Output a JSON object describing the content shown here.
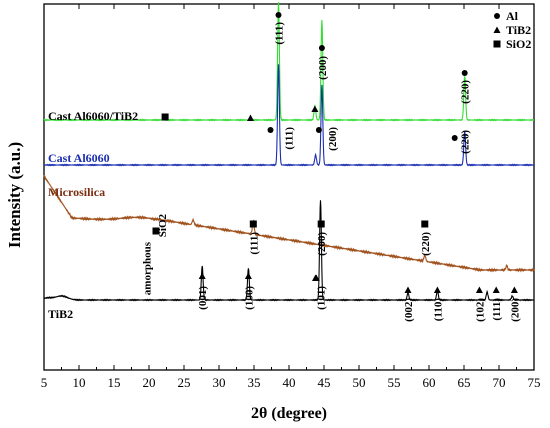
{
  "chart_data": {
    "type": "line",
    "xlabel": "2θ (degree)",
    "ylabel": "Intensity (a.u.)",
    "xlim": [
      5,
      75
    ],
    "x_ticks": [
      "5",
      "10",
      "15",
      "20",
      "25",
      "30",
      "35",
      "40",
      "45",
      "50",
      "55",
      "60",
      "65",
      "70",
      "75"
    ],
    "y_ticks": "none",
    "grid": false,
    "legend_position": "top-right",
    "legend": [
      {
        "symbol": "circle",
        "label": "Al"
      },
      {
        "symbol": "triangle",
        "label": "TiB2"
      },
      {
        "symbol": "square",
        "label": "SiO2"
      }
    ],
    "series": [
      {
        "name": "Cast Al6060/TiB2",
        "color": "#33dd33",
        "baseline_y": 120,
        "peaks": [
          [
            38.5,
            118
          ],
          [
            44.7,
            100
          ],
          [
            65.1,
            44
          ],
          [
            43.7,
            14
          ],
          [
            34.5,
            3
          ]
        ]
      },
      {
        "name": "Cast Al6060",
        "color": "#1a2db0",
        "baseline_y": 165,
        "peaks": [
          [
            38.5,
            101
          ],
          [
            44.7,
            80
          ],
          [
            65.1,
            34
          ],
          [
            43.8,
            10
          ]
        ]
      },
      {
        "name": "Microsilica",
        "color": "#a0521e",
        "hump_center": 21,
        "peaks": [
          [
            34.9,
            14
          ],
          [
            59.4,
            6
          ],
          [
            71.1,
            4
          ],
          [
            26.3,
            5
          ]
        ]
      },
      {
        "name": "TiB2",
        "color": "#000000",
        "baseline_y": 60,
        "peaks": [
          [
            27.6,
            34
          ],
          [
            34.2,
            32
          ],
          [
            44.5,
            100
          ],
          [
            57.0,
            7
          ],
          [
            61.2,
            9
          ],
          [
            68.3,
            8
          ],
          [
            71.9,
            4
          ]
        ]
      }
    ],
    "annotations": [
      {
        "text": "(111)",
        "x": 38.5,
        "series": "Cast Al6060/TiB2",
        "marker": "circle"
      },
      {
        "text": "(200)",
        "x": 44.7,
        "series": "Cast Al6060/TiB2",
        "marker": "circle"
      },
      {
        "text": "(220)",
        "x": 65.1,
        "series": "Cast Al6060/TiB2",
        "marker": "circle"
      },
      {
        "text": "(111)",
        "x": 38.5,
        "series": "Cast Al6060",
        "marker": "circle"
      },
      {
        "text": "(200)",
        "x": 44.7,
        "series": "Cast Al6060",
        "marker": "circle"
      },
      {
        "text": "(220)",
        "x": 65.1,
        "series": "Cast Al6060",
        "marker": "circle"
      },
      {
        "text": "(111)",
        "x": 34.9,
        "series": "Microsilica",
        "marker": "square"
      },
      {
        "text": "(200)",
        "x": 44.6,
        "series": "Microsilica",
        "marker": "square"
      },
      {
        "text": "(220)",
        "x": 59.4,
        "series": "Microsilica",
        "marker": "square"
      },
      {
        "text": "(001)",
        "x": 27.6,
        "series": "TiB2",
        "marker": "triangle"
      },
      {
        "text": "(100)",
        "x": 34.2,
        "series": "TiB2",
        "marker": "triangle"
      },
      {
        "text": "(101)",
        "x": 44.5,
        "series": "TiB2",
        "marker": "triangle"
      },
      {
        "text": "(002)",
        "x": 57.0,
        "series": "TiB2",
        "marker": "triangle"
      },
      {
        "text": "(110)",
        "x": 61.2,
        "series": "TiB2",
        "marker": "triangle"
      },
      {
        "text": "(102)",
        "x": 67.2,
        "series": "TiB2",
        "marker": "triangle"
      },
      {
        "text": "(111)",
        "x": 69.6,
        "series": "TiB2",
        "marker": "triangle"
      },
      {
        "text": "(200)",
        "x": 72.2,
        "series": "TiB2",
        "marker": "triangle"
      }
    ],
    "amorphous_label": [
      "amorphous",
      "SiO2"
    ],
    "extra_markers": [
      {
        "x": 22.3,
        "series": "Cast Al6060/TiB2",
        "marker": "square"
      },
      {
        "x": 34.5,
        "series": "Cast Al6060/TiB2",
        "marker": "triangle"
      },
      {
        "x": 43.7,
        "series": "Cast Al6060/TiB2",
        "marker": "triangle"
      },
      {
        "x": 21.0,
        "series": "Microsilica",
        "marker": "square"
      },
      {
        "x": 45.6,
        "series": "TiB2",
        "marker": "triangle"
      }
    ]
  }
}
